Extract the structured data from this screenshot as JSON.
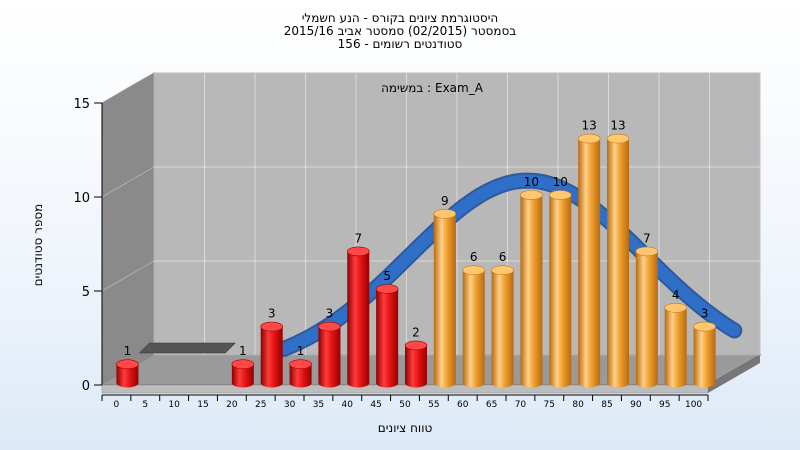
{
  "chart_data": {
    "type": "bar",
    "title": [
      "היסטוגרמת ציונים בקורס - הנע חשמלי",
      "בסמסטר  (02/2015)  סמסטר אביב 2015/16",
      "סטודנטים רשומים - 156"
    ],
    "subtitle": "Exam_A : במשימה",
    "xlabel": "טווח ציונים",
    "ylabel": "מספר סטודנטים",
    "ylim": [
      0,
      15
    ],
    "yticks": [
      "0",
      "5",
      "10",
      "15"
    ],
    "categories": [
      "0",
      "5",
      "10",
      "15",
      "20",
      "25",
      "30",
      "35",
      "40",
      "45",
      "50",
      "55",
      "60",
      "65",
      "70",
      "75",
      "80",
      "85",
      "90",
      "95",
      "100"
    ],
    "values": [
      1,
      0,
      0,
      0,
      1,
      3,
      1,
      3,
      7,
      5,
      2,
      9,
      6,
      6,
      10,
      10,
      13,
      13,
      7,
      4,
      3
    ],
    "data_labels": [
      "1",
      "",
      "",
      "",
      "1",
      "3",
      "1",
      "3",
      "7",
      "5",
      "2",
      "9",
      "6",
      "6",
      "10",
      "10",
      "13",
      "13",
      "7",
      "4",
      "3"
    ],
    "legend": "none",
    "grid": true,
    "colors": {
      "fail": "#e02020",
      "pass": "#f0a030",
      "curve": "#2f6fc8",
      "wall": "#b8b8b8",
      "side_wall": "#8a8a8a"
    }
  }
}
